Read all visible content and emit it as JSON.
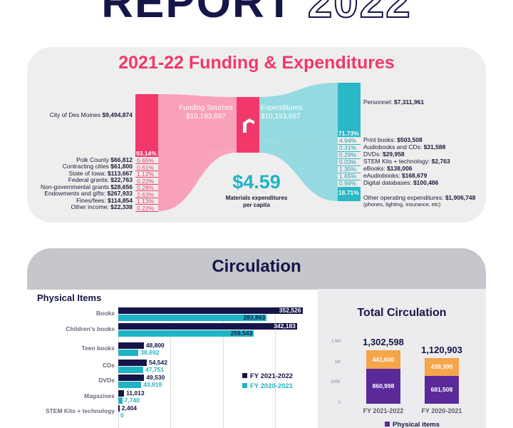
{
  "header": {
    "title_solid": "REPORT",
    "title_outline": "2022"
  },
  "funding": {
    "title": "2021-22 Funding & Expenditures",
    "funding_sources_label": "Funding Sources",
    "funding_sources_total": "$10,193,697",
    "expenditures_label": "Expenditures",
    "expenditures_total": "$10,193,697",
    "per_capita_value": "$4.59",
    "per_capita_label_1": "Materials expenditures",
    "per_capita_label_2": "per capita",
    "colors": {
      "pink": "#f2386a",
      "teal": "#2bb7c5",
      "light_pink": "#f99bb5",
      "light_teal": "#8fd8de"
    },
    "sources": [
      {
        "name": "City of Des Moines",
        "amount": "$9,494,874",
        "pct": "93.14%",
        "value": 9494874
      },
      {
        "name": "Polk County",
        "amount": "$66,812",
        "pct": "0.65%",
        "value": 66812
      },
      {
        "name": "Contracting cities",
        "amount": "$61,800",
        "pct": "0.61%",
        "value": 61800
      },
      {
        "name": "State of Iowa:",
        "amount": "$113,667",
        "pct": "1.12%",
        "value": 113667
      },
      {
        "name": "Federal grants:",
        "amount": "$22,763",
        "pct": "0.22%",
        "value": 22763
      },
      {
        "name": "Non-governmental grants",
        "amount": "$28,656",
        "pct": "0.28%",
        "value": 28656
      },
      {
        "name": "Endowments and gifts:",
        "amount": "$267,933",
        "pct": "2.63%",
        "value": 267933
      },
      {
        "name": "Fines/fees:",
        "amount": "$114,854",
        "pct": "1.13%",
        "value": 114854
      },
      {
        "name": "Other income:",
        "amount": "$22,338",
        "pct": "0.22%",
        "value": 22338
      }
    ],
    "expenditures": [
      {
        "name": "Personnel:",
        "amount": "$7,311,961",
        "pct": "71.73%",
        "value": 7311961
      },
      {
        "name": "Print books:",
        "amount": "$503,508",
        "pct": "4.94%",
        "value": 503508
      },
      {
        "name": "Audiobooks and CDs:",
        "amount": "$31,588",
        "pct": "0.31%",
        "value": 31588
      },
      {
        "name": "DVDs:",
        "amount": "$29,958",
        "pct": "0.29%",
        "value": 29958
      },
      {
        "name": "STEM Kits + technology:",
        "amount": "$2,763",
        "pct": "0.03%",
        "value": 2763
      },
      {
        "name": "eBooks:",
        "amount": "$138,006",
        "pct": "1.35%",
        "value": 138006
      },
      {
        "name": "eAudiobooks:",
        "amount": "$168,679",
        "pct": "1.65%",
        "value": 168679
      },
      {
        "name": "Digital databases:",
        "amount": "$100,486",
        "pct": "0.99%",
        "value": 100486
      },
      {
        "name": "Other operating expenditures:",
        "amount": "$1,906,748",
        "pct": "18.71%",
        "value": 1906748,
        "note": "(phones, lighting, insurance, etc)"
      }
    ]
  },
  "circulation": {
    "title": "Circulation",
    "physical_title": "Physical Items",
    "total_title": "Total Circulation"
  },
  "chart_data": [
    {
      "type": "bar",
      "title": "Physical Items",
      "orientation": "horizontal",
      "categories": [
        "Books",
        "Children's books",
        "Teen books",
        "CDs",
        "DVDs",
        "Magazines",
        "STEM Kits + technology"
      ],
      "series": [
        {
          "name": "FY 2021-2022",
          "color": "#151548",
          "values": [
            352526,
            342183,
            48800,
            54542,
            49530,
            11013,
            2404
          ],
          "labels": [
            "352,526",
            "342,183",
            "48,800",
            "54,542",
            "49,530",
            "11,013",
            "2,404"
          ]
        },
        {
          "name": "FY 2020-2021",
          "color": "#1fb4c4",
          "values": [
            283863,
            259543,
            38692,
            47751,
            43919,
            7740,
            0
          ],
          "labels": [
            "283,863",
            "259,543",
            "38,692",
            "47,751",
            "43,919",
            "7,740",
            "0"
          ]
        }
      ],
      "xlim": [
        0,
        360000
      ],
      "grid": true,
      "legend": "right"
    },
    {
      "type": "bar",
      "stacked": true,
      "title": "Total Circulation",
      "categories": [
        "FY 2021-2022",
        "FY 2020-2021"
      ],
      "totals": [
        1302598,
        1120903
      ],
      "total_labels": [
        "1,302,598",
        "1,120,903"
      ],
      "series": [
        {
          "name": "Physical items",
          "color": "#5a2a9a",
          "values": [
            860998,
            681508
          ],
          "labels": [
            "860,998",
            "681,508"
          ]
        },
        {
          "name": "",
          "color": "#f5a54a",
          "values": [
            441600,
            439395
          ],
          "labels": [
            "441,600",
            "439,395"
          ]
        }
      ],
      "ylim": [
        0,
        1500000
      ],
      "yticks": [
        "0",
        "500K",
        "1M",
        "1.5M"
      ],
      "yticks_values": [
        0,
        500000,
        1000000,
        1500000
      ],
      "legend": "bottom"
    }
  ]
}
